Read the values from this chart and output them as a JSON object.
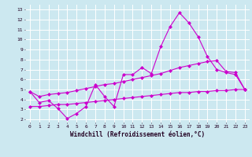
{
  "xlabel": "Windchill (Refroidissement éolien,°C)",
  "bg_color": "#cce8f0",
  "grid_color": "#ffffff",
  "line_color": "#cc00cc",
  "x_ticks": [
    0,
    1,
    2,
    3,
    4,
    5,
    6,
    7,
    8,
    9,
    10,
    11,
    12,
    13,
    14,
    15,
    16,
    17,
    18,
    19,
    20,
    21,
    22,
    23
  ],
  "y_ticks": [
    2,
    3,
    4,
    5,
    6,
    7,
    8,
    9,
    10,
    11,
    12,
    13
  ],
  "ylim": [
    1.7,
    13.5
  ],
  "xlim": [
    -0.5,
    23.5
  ],
  "line1_x": [
    0,
    1,
    2,
    3,
    4,
    5,
    6,
    7,
    8,
    9,
    10,
    11,
    12,
    13,
    14,
    15,
    16,
    17,
    18,
    19,
    20,
    21,
    22,
    23
  ],
  "line1_y": [
    4.8,
    3.7,
    3.9,
    3.1,
    2.1,
    2.6,
    3.3,
    5.5,
    4.3,
    3.3,
    6.5,
    6.5,
    7.2,
    6.6,
    9.3,
    11.3,
    12.7,
    11.7,
    10.3,
    8.3,
    7.0,
    6.7,
    6.5,
    5.0
  ],
  "line2_x": [
    0,
    1,
    2,
    3,
    4,
    5,
    6,
    7,
    8,
    9,
    10,
    11,
    12,
    13,
    14,
    15,
    16,
    17,
    18,
    19,
    20,
    21,
    22,
    23
  ],
  "line2_y": [
    4.8,
    4.3,
    4.5,
    4.6,
    4.7,
    4.9,
    5.1,
    5.3,
    5.5,
    5.6,
    5.8,
    6.0,
    6.2,
    6.4,
    6.6,
    6.9,
    7.2,
    7.4,
    7.6,
    7.8,
    7.9,
    6.8,
    6.7,
    5.0
  ],
  "line3_x": [
    0,
    1,
    2,
    3,
    4,
    5,
    6,
    7,
    8,
    9,
    10,
    11,
    12,
    13,
    14,
    15,
    16,
    17,
    18,
    19,
    20,
    21,
    22,
    23
  ],
  "line3_y": [
    3.3,
    3.3,
    3.4,
    3.5,
    3.5,
    3.6,
    3.7,
    3.8,
    3.9,
    4.0,
    4.1,
    4.2,
    4.3,
    4.4,
    4.5,
    4.6,
    4.7,
    4.7,
    4.8,
    4.8,
    4.9,
    4.9,
    5.0,
    5.0
  ],
  "marker": "D",
  "markersize": 2,
  "linewidth": 0.8,
  "tick_fontsize": 4.5,
  "label_fontsize": 5.5
}
